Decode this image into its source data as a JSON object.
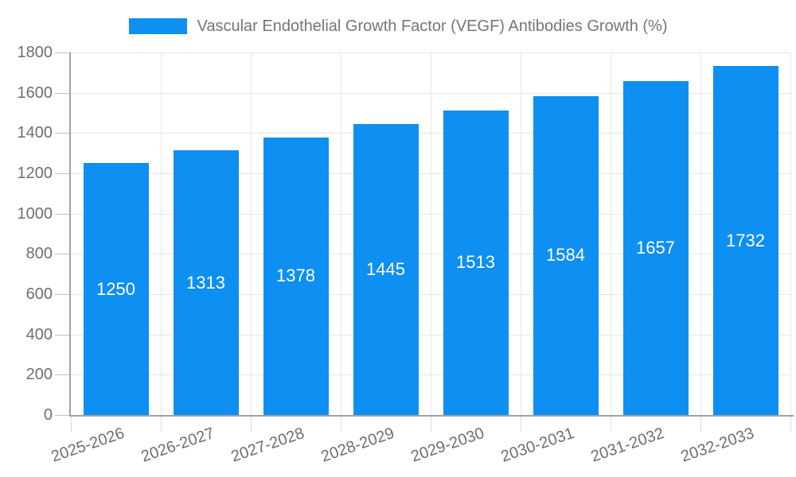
{
  "legend": {
    "label": "Vascular Endothelial Growth Factor (VEGF) Antibodies Growth (%)"
  },
  "chart_data": {
    "type": "bar",
    "title": "Vascular Endothelial Growth Factor (VEGF) Antibodies Growth (%)",
    "series_name": "Vascular Endothelial Growth Factor (VEGF) Antibodies Growth (%)",
    "categories": [
      "2025-2026",
      "2026-2027",
      "2027-2028",
      "2028-2029",
      "2029-2030",
      "2030-2031",
      "2031-2032",
      "2032-2033"
    ],
    "values": [
      1250,
      1313,
      1378,
      1445,
      1513,
      1584,
      1657,
      1732
    ],
    "value_labels": [
      "1250",
      "1313",
      "1378",
      "1445",
      "1513",
      "1584",
      "1657",
      "1732"
    ],
    "xlabel": "",
    "ylabel": "",
    "ylim": [
      0,
      1800
    ],
    "ytick_step": 200,
    "ytick_labels": [
      "0",
      "200",
      "400",
      "600",
      "800",
      "1000",
      "1200",
      "1400",
      "1600",
      "1800"
    ],
    "grid": true,
    "legend_position": "top",
    "colors": {
      "bar": "#0e8ff2",
      "value_label": "#ffffff",
      "axis_text": "#6f6f6f",
      "legend_text": "#757575"
    }
  }
}
